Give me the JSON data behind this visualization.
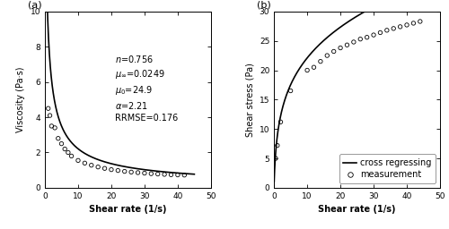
{
  "n": 0.756,
  "mu_inf": 0.0249,
  "mu_0": 24.9,
  "alpha": 2.21,
  "RRMSE": 0.176,
  "meas_shear_rate_a": [
    1,
    1.5,
    2,
    3,
    4,
    5,
    6,
    7,
    8,
    10,
    12,
    14,
    16,
    18,
    20,
    22,
    24,
    26,
    28,
    30,
    32,
    34,
    36,
    38,
    40,
    42
  ],
  "meas_viscosity_a": [
    4.5,
    4.1,
    3.5,
    3.4,
    2.8,
    2.5,
    2.2,
    2.0,
    1.8,
    1.55,
    1.4,
    1.28,
    1.18,
    1.1,
    1.03,
    0.98,
    0.93,
    0.89,
    0.86,
    0.83,
    0.8,
    0.78,
    0.76,
    0.74,
    0.73,
    0.72
  ],
  "meas_shear_rate_b": [
    0.5,
    1,
    2,
    5,
    10,
    12,
    14,
    16,
    18,
    20,
    22,
    24,
    26,
    28,
    30,
    32,
    34,
    36,
    38,
    40,
    42,
    44
  ],
  "meas_shear_stress_b": [
    5.0,
    7.2,
    11.2,
    16.5,
    20.0,
    20.5,
    21.5,
    22.5,
    23.2,
    23.8,
    24.3,
    24.8,
    25.3,
    25.6,
    26.0,
    26.4,
    26.8,
    27.1,
    27.4,
    27.7,
    28.0,
    28.3
  ],
  "xlim_a": [
    0,
    50
  ],
  "ylim_a": [
    0,
    10
  ],
  "xticks_a": [
    0,
    10,
    20,
    30,
    40,
    50
  ],
  "yticks_a": [
    0,
    2,
    4,
    6,
    8,
    10
  ],
  "xlim_b": [
    0,
    50
  ],
  "ylim_b": [
    0,
    30
  ],
  "xticks_b": [
    0,
    10,
    20,
    30,
    40,
    50
  ],
  "yticks_b": [
    0,
    5,
    10,
    15,
    20,
    25,
    30
  ],
  "xlabel": "Shear rate (1/s)",
  "ylabel_a": "Viscosity (Pa·s)",
  "ylabel_b": "Shear stress (Pa)",
  "label_a": "(a)",
  "label_b": "(b)",
  "line_color": "#000000",
  "marker_color": "#000000",
  "background_color": "#ffffff",
  "legend_line": "cross regressing",
  "legend_marker": "measurement",
  "label_fontsize": 7,
  "tick_fontsize": 6.5,
  "annot_fontsize": 7,
  "panel_label_fontsize": 8
}
